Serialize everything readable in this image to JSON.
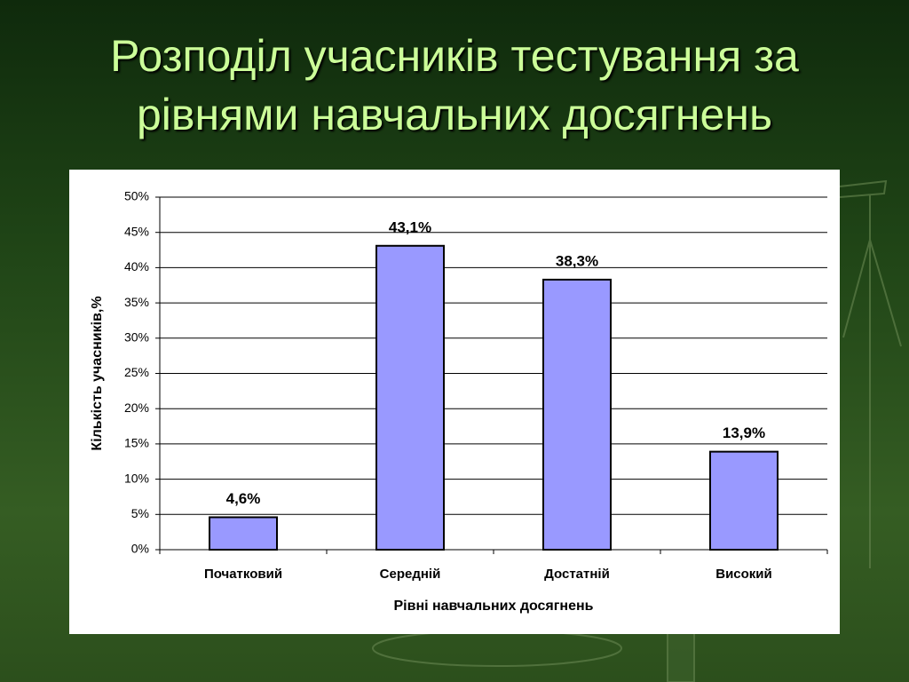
{
  "chart_data": {
    "type": "bar",
    "title": "Розподіл учасників тестування за рівнями навчальних досягнень",
    "categories": [
      "Початковий",
      "Середній",
      "Достатній",
      "Високий"
    ],
    "values": [
      4.6,
      43.1,
      38.3,
      13.9
    ],
    "value_labels": [
      "4,6%",
      "43,1%",
      "38,3%",
      "13,9%"
    ],
    "color": "#9999ff",
    "x_label": "Рівні навчальних досягнень",
    "y_label": "Кількість учасників,%",
    "ylim": [
      0,
      50
    ],
    "yticks": [
      {
        "value": 0,
        "label": "0%"
      },
      {
        "value": 5,
        "label": "5%"
      },
      {
        "value": 10,
        "label": "10%"
      },
      {
        "value": 15,
        "label": "15%"
      },
      {
        "value": 20,
        "label": "20%"
      },
      {
        "value": 25,
        "label": "25%"
      },
      {
        "value": 30,
        "label": "30%"
      },
      {
        "value": 35,
        "label": "35%"
      },
      {
        "value": 40,
        "label": "40%"
      },
      {
        "value": 45,
        "label": "45%"
      },
      {
        "value": 50,
        "label": "50%"
      }
    ],
    "grid": true
  }
}
